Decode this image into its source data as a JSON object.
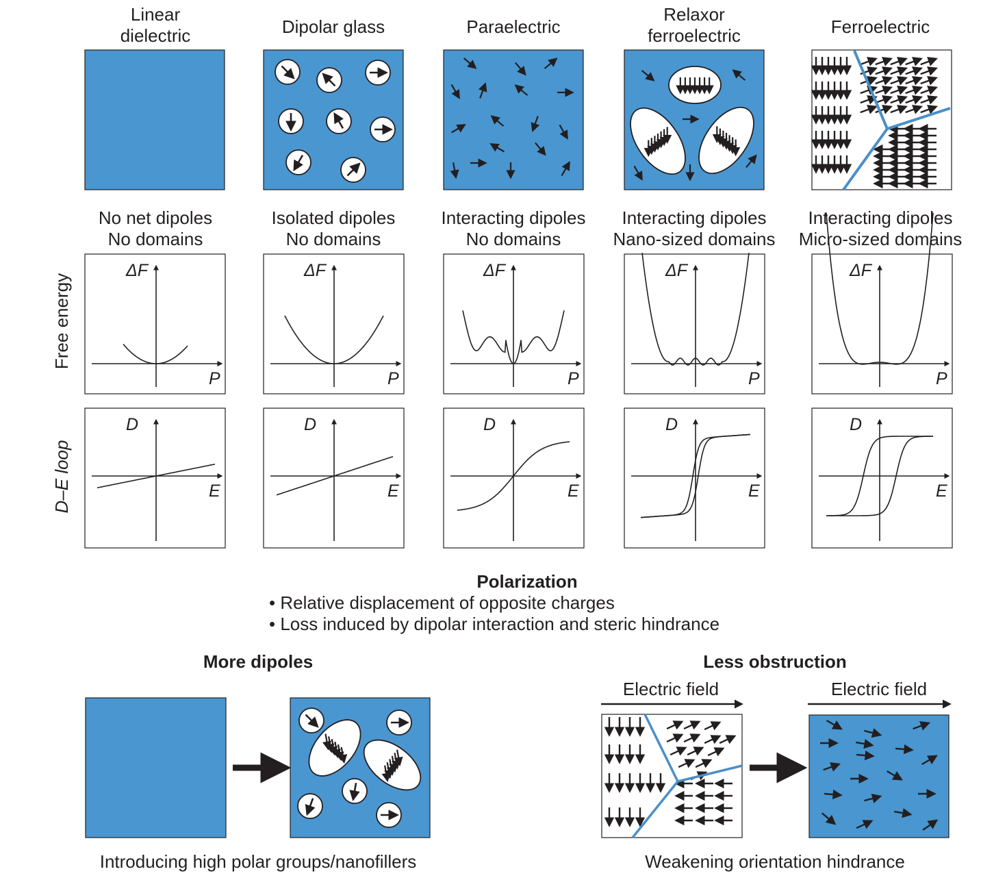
{
  "colors": {
    "blue_fill": "#4a96d0",
    "domain_wall": "#4a8fc8",
    "ink": "#231f20"
  },
  "columns": [
    {
      "title_line1": "Linear",
      "title_line2": "dielectric",
      "desc_line1": "No net dipoles",
      "desc_line2": "No domains"
    },
    {
      "title_line1": "Dipolar glass",
      "title_line2": "",
      "desc_line1": "Isolated dipoles",
      "desc_line2": "No domains"
    },
    {
      "title_line1": "Paraelectric",
      "title_line2": "",
      "desc_line1": "Interacting dipoles",
      "desc_line2": "No domains"
    },
    {
      "title_line1": "Relaxor",
      "title_line2": "ferroelectric",
      "desc_line1": "Interacting dipoles",
      "desc_line2": "Nano-sized domains"
    },
    {
      "title_line1": "Ferroelectric",
      "title_line2": "",
      "desc_line1": "Interacting dipoles",
      "desc_line2": "Micro-sized domains"
    }
  ],
  "rows": {
    "free_energy_label": "Free energy",
    "de_loop_label": "D–E loop",
    "fe_y_axis": "ΔF",
    "fe_x_axis": "P",
    "de_y_axis": "D",
    "de_x_axis": "E"
  },
  "polarization": {
    "heading": "Polarization",
    "bullets": [
      "• Relative displacement of opposite charges",
      "• Loss induced by dipolar interaction and steric hindrance"
    ]
  },
  "bottom_left": {
    "heading": "More dipoles",
    "caption": "Introducing high polar groups/nanofillers"
  },
  "bottom_right": {
    "heading": "Less obstruction",
    "field_label_left": "Electric field",
    "field_label_right": "Electric field",
    "caption": "Weakening orientation hindrance"
  }
}
